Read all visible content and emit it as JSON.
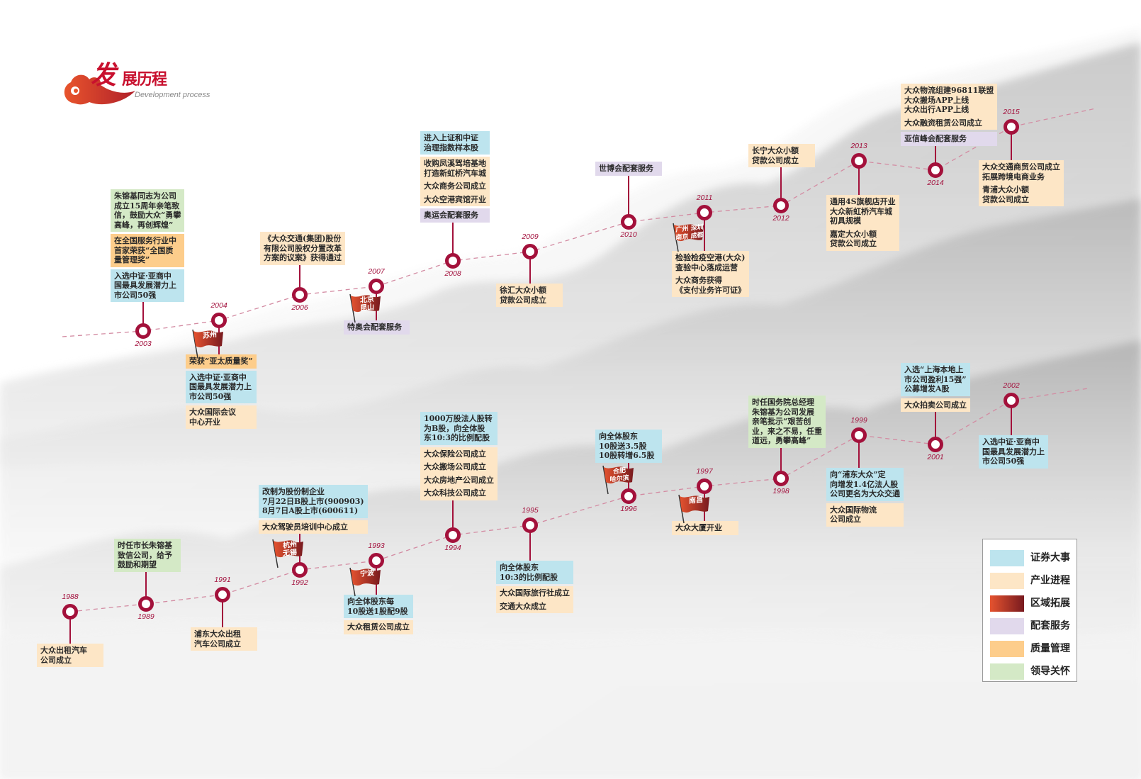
{
  "title": {
    "cn_first": "发",
    "cn_rest": "展历程",
    "en": "Development process"
  },
  "colors": {
    "securities": "#bde4ee",
    "industry": "#fde6c6",
    "region_start": "#e5532f",
    "region_end": "#781a1f",
    "service": "#e1d9ec",
    "quality": "#fdcd8b",
    "leadership": "#d4e9c6",
    "node": "#a3113b",
    "dash": "#d38ba2"
  },
  "legend": [
    {
      "key": "securities",
      "label": "证券大事"
    },
    {
      "key": "industry",
      "label": "产业进程"
    },
    {
      "key": "region",
      "label": "区域拓展"
    },
    {
      "key": "service",
      "label": "配套服务"
    },
    {
      "key": "quality",
      "label": "质量管理"
    },
    {
      "key": "leadership",
      "label": "领导关怀"
    }
  ],
  "timeline_upper": [
    {
      "year": "2003",
      "items": [
        {
          "cat": "leadership",
          "text": "朱镕基同志为公司\n成立15周年亲笔致\n信，鼓励大众“勇攀\n高峰，再创辉煌”"
        },
        {
          "cat": "quality",
          "text": "在全国服务行业中\n首家荣获“全国质\n量管理奖”"
        },
        {
          "cat": "securities",
          "text": "入选中证·亚商中\n国最具发展潜力上\n市公司50强"
        }
      ]
    },
    {
      "year": "2004",
      "flag": "苏州",
      "items": [
        {
          "cat": "quality",
          "text": "荣获“亚太质量奖”"
        },
        {
          "cat": "securities",
          "text": "入选中证·亚商中\n国最具发展潜力上\n市公司50强"
        },
        {
          "cat": "industry",
          "text": "大众国际会议\n中心开业"
        }
      ]
    },
    {
      "year": "2006",
      "items": [
        {
          "cat": "industry",
          "text": "《大众交通(集团)股份\n有限公司股权分置改革\n方案的议案》获得通过"
        }
      ]
    },
    {
      "year": "2007",
      "flag": "北京\n昆山",
      "items": [
        {
          "cat": "service",
          "text": "特奥会配套服务"
        }
      ]
    },
    {
      "year": "2008",
      "items": [
        {
          "cat": "securities",
          "text": "进入上证和中证\n治理指数样本股"
        },
        {
          "cat": "industry",
          "text": "收购凤溪驾培基地\n打造新虹桥汽车城"
        },
        {
          "cat": "industry",
          "text": "大众商务公司成立"
        },
        {
          "cat": "industry",
          "text": "大众空港宾馆开业"
        },
        {
          "cat": "service",
          "text": "奥运会配套服务"
        }
      ]
    },
    {
      "year": "2009",
      "items": [
        {
          "cat": "industry",
          "text": "徐汇大众小额\n贷款公司成立"
        }
      ]
    },
    {
      "year": "2010",
      "items": [
        {
          "cat": "service",
          "text": "世博会配套服务"
        }
      ]
    },
    {
      "year": "2011",
      "flag": "广州 深圳\n南京 成都",
      "items": [
        {
          "cat": "industry",
          "text": "检验检疫空港(大众)\n查验中心落成运营"
        },
        {
          "cat": "industry",
          "text": "大众商务获得\n《支付业务许可证》"
        }
      ]
    },
    {
      "year": "2012",
      "items": [
        {
          "cat": "industry",
          "text": "长宁大众小额\n贷款公司成立"
        }
      ]
    },
    {
      "year": "2013",
      "items": [
        {
          "cat": "industry",
          "text": "通用4S旗舰店开业\n大众新虹桥汽车城\n初具规模"
        },
        {
          "cat": "industry",
          "text": "嘉定大众小额\n贷款公司成立"
        }
      ]
    },
    {
      "year": "2014",
      "items": [
        {
          "cat": "industry",
          "text": "大众物流组建96811联盟\n大众搬场APP上线\n大众出行APP上线"
        },
        {
          "cat": "industry",
          "text": "大众融资租赁公司成立"
        },
        {
          "cat": "service",
          "text": "亚信峰会配套服务"
        }
      ]
    },
    {
      "year": "2015",
      "items": [
        {
          "cat": "industry",
          "text": "大众交通商贸公司成立\n拓展跨境电商业务"
        },
        {
          "cat": "industry",
          "text": "青浦大众小额\n贷款公司成立"
        }
      ]
    }
  ],
  "timeline_lower": [
    {
      "year": "1988",
      "items": [
        {
          "cat": "industry",
          "text": "大众出租汽车\n公司成立"
        }
      ]
    },
    {
      "year": "1989",
      "items": [
        {
          "cat": "leadership",
          "text": "时任市长朱镕基\n致信公司，给予\n鼓励和期望"
        }
      ]
    },
    {
      "year": "1991",
      "items": [
        {
          "cat": "industry",
          "text": "浦东大众出租\n汽车公司成立"
        }
      ]
    },
    {
      "year": "1992",
      "flag": "杭州\n无锡",
      "items": [
        {
          "cat": "securities",
          "text": "改制为股份制企业\n7月22日B股上市(900903)\n8月7日A股上市(600611)"
        },
        {
          "cat": "industry",
          "text": "大众驾驶员培训中心成立"
        }
      ]
    },
    {
      "year": "1993",
      "flag": "宁波",
      "items": [
        {
          "cat": "securities",
          "text": "向全体股东每\n10股送1股配9股"
        },
        {
          "cat": "industry",
          "text": "大众租赁公司成立"
        }
      ]
    },
    {
      "year": "1994",
      "items": [
        {
          "cat": "securities",
          "text": "1000万股法人股转\n为B股，向全体股\n东10:3的比例配股"
        },
        {
          "cat": "industry",
          "text": "大众保险公司成立"
        },
        {
          "cat": "industry",
          "text": "大众搬场公司成立"
        },
        {
          "cat": "industry",
          "text": "大众房地产公司成立"
        },
        {
          "cat": "industry",
          "text": "大众科技公司成立"
        }
      ]
    },
    {
      "year": "1995",
      "items": [
        {
          "cat": "securities",
          "text": "向全体股东\n10:3的比例配股"
        },
        {
          "cat": "industry",
          "text": "大众国际旅行社成立"
        },
        {
          "cat": "industry",
          "text": "交通大众成立"
        }
      ]
    },
    {
      "year": "1996",
      "flag": "合肥\n哈尔滨",
      "items": [
        {
          "cat": "securities",
          "text": "向全体股东\n10股送3.5股\n10股转增6.5股"
        }
      ]
    },
    {
      "year": "1997",
      "flag": "南昌",
      "items": [
        {
          "cat": "industry",
          "text": "大众大厦开业"
        }
      ]
    },
    {
      "year": "1998",
      "items": [
        {
          "cat": "leadership",
          "text": "时任国务院总经理\n朱镕基为公司发展\n亲笔批示“艰苦创\n业，来之不易，任重\n道远，勇攀高峰”"
        }
      ]
    },
    {
      "year": "1999",
      "items": [
        {
          "cat": "securities",
          "text": "向“浦东大众”定\n向增发1.4亿法人股\n公司更名为大众交通"
        },
        {
          "cat": "industry",
          "text": "大众国际物流\n公司成立"
        }
      ]
    },
    {
      "year": "2001",
      "items": [
        {
          "cat": "securities",
          "text": "入选“上海本地上\n市公司盈利15强”\n公募增发A股"
        },
        {
          "cat": "industry",
          "text": "大众拍卖公司成立"
        }
      ]
    },
    {
      "year": "2002",
      "items": [
        {
          "cat": "securities",
          "text": "入选中证·亚商中\n国最具发展潜力上\n市公司50强"
        }
      ]
    }
  ]
}
